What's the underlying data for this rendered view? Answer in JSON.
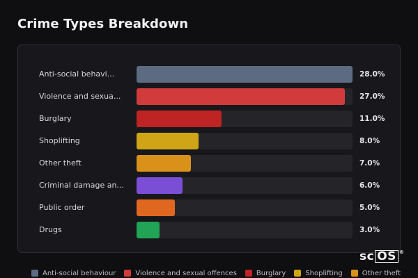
{
  "page": {
    "title": "Crime Types Breakdown"
  },
  "chart_data": {
    "type": "bar",
    "orientation": "horizontal",
    "title": "Crime Types Breakdown",
    "categories": [
      "Anti-social behavi...",
      "Violence and sexua...",
      "Burglary",
      "Shoplifting",
      "Other theft",
      "Criminal damage an...",
      "Public order",
      "Drugs"
    ],
    "values": [
      28.0,
      27.0,
      11.0,
      8.0,
      7.0,
      6.0,
      5.0,
      3.0
    ],
    "value_labels": [
      "28.0%",
      "27.0%",
      "11.0%",
      "8.0%",
      "7.0%",
      "6.0%",
      "5.0%",
      "3.0%"
    ],
    "colors": [
      "#5d6b82",
      "#d23b3b",
      "#bf2424",
      "#cfa417",
      "#d9911a",
      "#7a4fd6",
      "#e0671f",
      "#21a455"
    ],
    "xlim": [
      0,
      28
    ],
    "grid": false,
    "legend_position": "bottom"
  },
  "legend": {
    "items": [
      {
        "label": "Anti-social behaviour",
        "color": "#5d6b82"
      },
      {
        "label": "Violence and sexual offences",
        "color": "#d23b3b"
      },
      {
        "label": "Burglary",
        "color": "#bf2424"
      },
      {
        "label": "Shoplifting",
        "color": "#cfa417"
      },
      {
        "label": "Other theft",
        "color": "#d9911a"
      }
    ]
  },
  "watermark": {
    "text_left": "sc",
    "text_boxed": "OS",
    "mark": "®"
  },
  "colors": {
    "background": "#0f0f12",
    "panel": "#18181c",
    "track": "#252529"
  }
}
